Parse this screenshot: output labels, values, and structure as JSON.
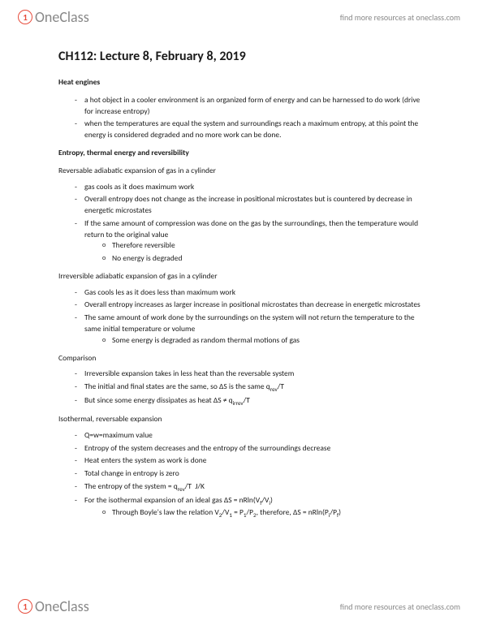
{
  "brand": {
    "name": "OneClass",
    "icon_char": "1"
  },
  "header_link": "find more resources at oneclass.com",
  "footer_link": "find more resources at oneclass.com",
  "title": "CH112: Lecture 8, February 8, 2019",
  "s1": {
    "heading": "Heat engines",
    "b1": "a hot object in a cooler environment is an organized form of energy and can be harnessed to do work (drive for increase entropy)",
    "b2": "when the temperatures are equal the system and surroundings reach a maximum entropy, at this point the energy is considered degraded and no more work can be done."
  },
  "s2": {
    "heading": "Entropy, thermal energy and reversibility"
  },
  "s3": {
    "heading": "Reversable adiabatic expansion of gas in a cylinder",
    "b1": "gas cools as it does maximum work",
    "b2": "Overall entropy does not change as the increase in positional microstates but is countered by decrease in energetic microstates",
    "b3": "If the same amount of compression was done on the gas by the surroundings, then the temperature would return to the original value",
    "b3a": "Therefore reversible",
    "b3b": "No energy is degraded"
  },
  "s4": {
    "heading": "Irreversible adiabatic expansion of gas in a cylinder",
    "b1": "Gas cools les as it does less than maximum work",
    "b2": "Overall entropy increases as larger increase in positional microstates than decrease in energetic microstates",
    "b3": "The same amount of work done by the surroundings on the system will not return the temperature to the same initial temperature or volume",
    "b3a": "Some energy is degraded as random thermal motions of gas"
  },
  "s5": {
    "heading": "Comparison",
    "b1": "Irreversible expansion takes in less heat than the reversable system",
    "b3_prefix": "But since some energy dissipates as heat ΔS ≠ q"
  },
  "s6": {
    "heading": "Isothermal, reversable expansion",
    "b1": "Q=w=maximum value",
    "b2": "Entropy of the system decreases and the entropy of the surroundings decrease",
    "b3": "Heat enters the system as work is done",
    "b4": "Total change in entropy is zero"
  }
}
